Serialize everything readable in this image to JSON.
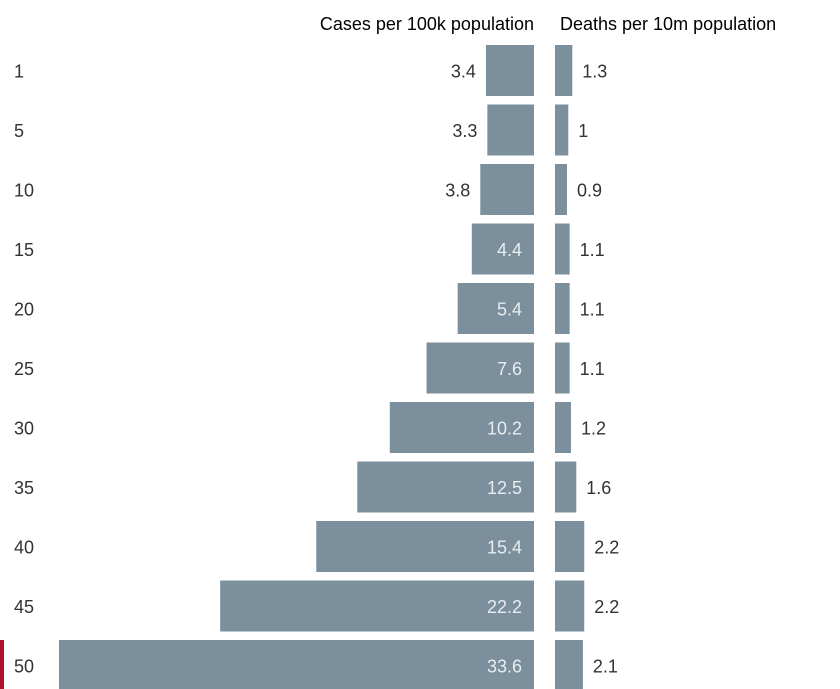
{
  "colors": {
    "bar": "#7b8f9d",
    "text": "#333333",
    "label_on_bar": "#e8edf0",
    "highlight": "#b0102b"
  },
  "chart_data": {
    "type": "bar",
    "orientation": "horizontal",
    "categories": [
      "1",
      "5",
      "10",
      "15",
      "20",
      "25",
      "30",
      "35",
      "40",
      "45",
      "50"
    ],
    "highlighted_category": "50",
    "series": [
      {
        "name": "Cases per 100k population",
        "values": [
          3.4,
          3.3,
          3.8,
          4.4,
          5.4,
          7.6,
          10.2,
          12.5,
          15.4,
          22.2,
          33.6
        ],
        "value_labels": [
          "3.4",
          "3.3",
          "3.8",
          "4.4",
          "5.4",
          "7.6",
          "10.2",
          "12.5",
          "15.4",
          "22.2",
          "33.6"
        ]
      },
      {
        "name": "Deaths per 10m population",
        "values": [
          1.3,
          1,
          0.9,
          1.1,
          1.1,
          1.1,
          1.2,
          1.6,
          2.2,
          2.2,
          2.1
        ],
        "value_labels": [
          "1.3",
          "1",
          "0.9",
          "1.1",
          "1.1",
          "1.1",
          "1.2",
          "1.6",
          "2.2",
          "2.2",
          "2.1"
        ]
      }
    ],
    "grid": false
  }
}
